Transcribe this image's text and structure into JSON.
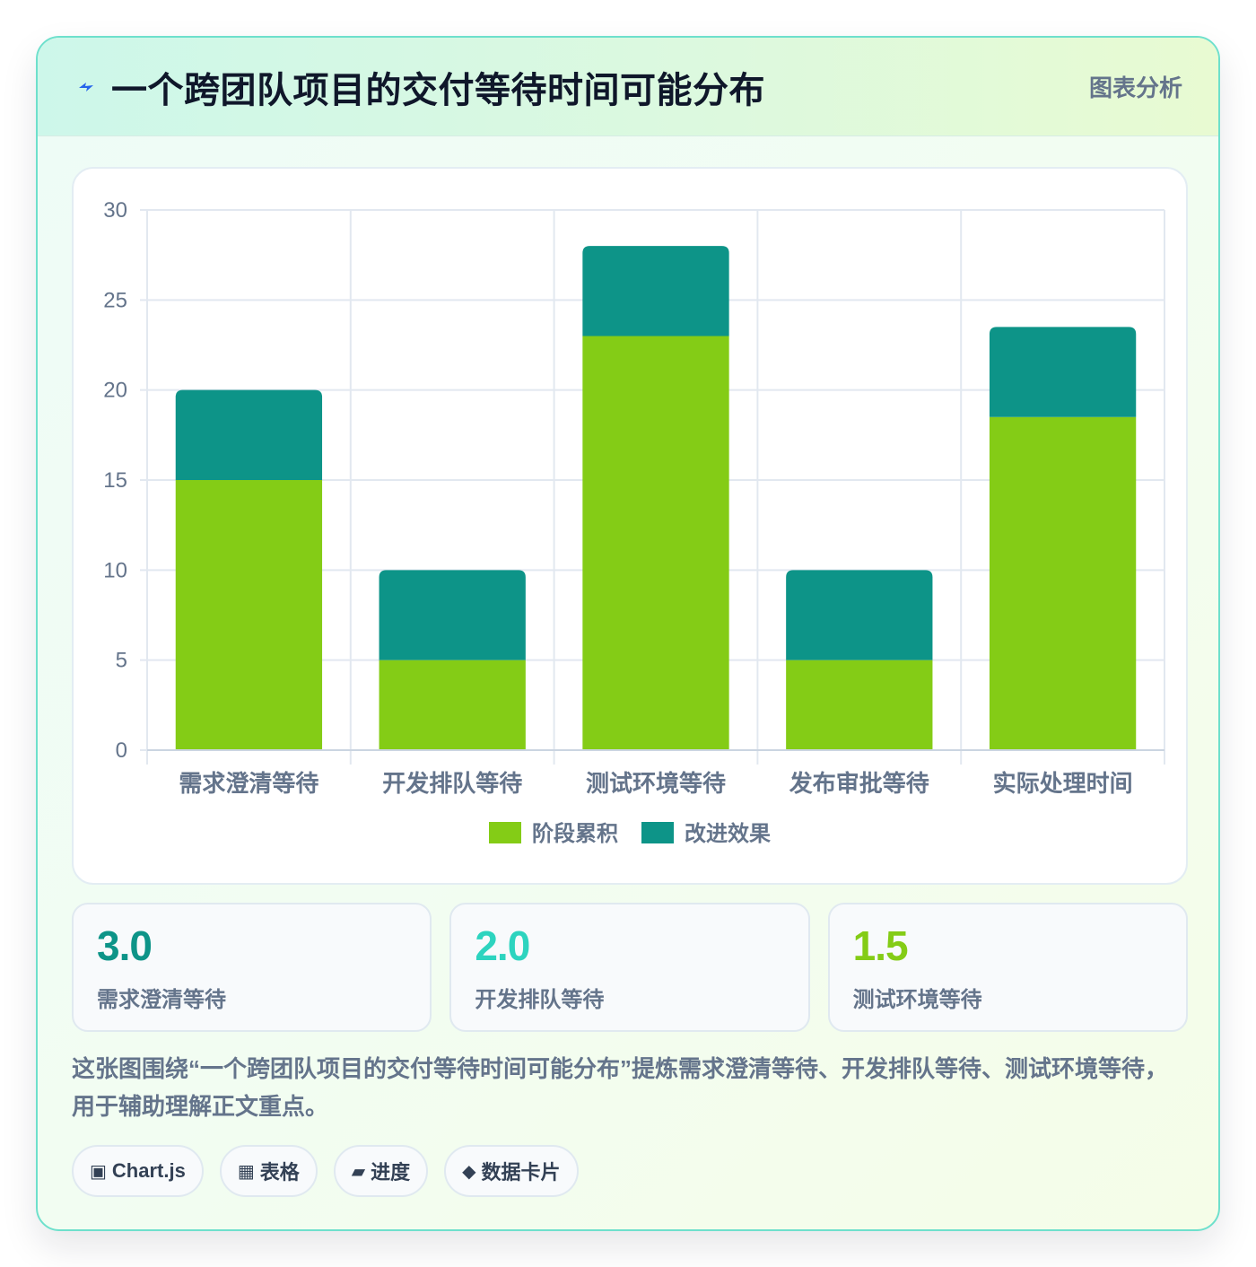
{
  "header": {
    "title": "一个跨团队项目的交付等待时间可能分布",
    "tag": "图表分析",
    "icon": "bolt-icon",
    "icon_color": "#2563eb"
  },
  "chart_data": {
    "type": "bar",
    "stacked": true,
    "categories": [
      "需求澄清等待",
      "开发排队等待",
      "测试环境等待",
      "发布审批等待",
      "实际处理时间"
    ],
    "series": [
      {
        "name": "阶段累积",
        "color": "#84cc16",
        "values": [
          15,
          5,
          23,
          5,
          18.5
        ]
      },
      {
        "name": "改进效果",
        "color": "#0d9488",
        "values": [
          5,
          5,
          5,
          5,
          5
        ]
      }
    ],
    "ylim": [
      0,
      30
    ],
    "yticks": [
      0,
      5,
      10,
      15,
      20,
      25,
      30
    ],
    "grid": true,
    "legend_position": "bottom"
  },
  "stats": [
    {
      "value": "3.0",
      "label": "需求澄清等待",
      "color": "#0d9488"
    },
    {
      "value": "2.0",
      "label": "开发排队等待",
      "color": "#2dd4bf"
    },
    {
      "value": "1.5",
      "label": "测试环境等待",
      "color": "#84cc16"
    }
  ],
  "description": "这张图围绕“一个跨团队项目的交付等待时间可能分布”提炼需求澄清等待、开发排队等待、测试环境等待，用于辅助理解正文重点。",
  "tags": [
    {
      "icon": "▣",
      "icon_name": "chart-icon",
      "label": "Chart.js"
    },
    {
      "icon": "▦",
      "icon_name": "table-icon",
      "label": "表格"
    },
    {
      "icon": "▰",
      "icon_name": "progress-icon",
      "label": "进度"
    },
    {
      "icon": "◆",
      "icon_name": "diamond-icon",
      "label": "数据卡片"
    }
  ]
}
